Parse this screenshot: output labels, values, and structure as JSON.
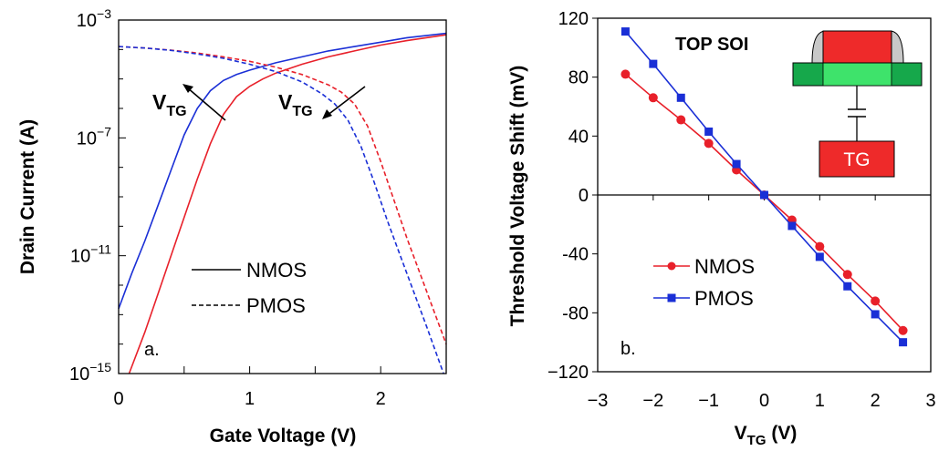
{
  "colors": {
    "nmos": "#e8202a",
    "pmos": "#1a2fd6",
    "inset_red": "#ee2a2a",
    "inset_green_dark": "#16a84b",
    "inset_green_light": "#3ee36b",
    "inset_gray": "#c8c8c8"
  },
  "chart_data": [
    {
      "type": "line",
      "panel_label": "a.",
      "xlabel": "Gate Voltage (V)",
      "ylabel": "Drain Current (A)",
      "xlim": [
        0,
        2.5
      ],
      "ylim_log10": [
        -15,
        -3
      ],
      "y_scale": "log",
      "x_ticks": [
        "0",
        "1",
        "2"
      ],
      "y_ticks": [
        {
          "base": "10",
          "exp": "−3"
        },
        {
          "base": "10",
          "exp": "−7"
        },
        {
          "base": "10",
          "exp": "−11"
        },
        {
          "base": "10",
          "exp": "−15"
        }
      ],
      "legend": {
        "position": "lower-center",
        "entries": [
          {
            "label": "NMOS",
            "style": "solid"
          },
          {
            "label": "PMOS",
            "style": "dashed"
          }
        ]
      },
      "annotations": [
        {
          "main": "V",
          "sub": "TG",
          "arrow": "up-left"
        },
        {
          "main": "V",
          "sub": "TG",
          "arrow": "down-left"
        }
      ],
      "series": [
        {
          "name": "NMOS",
          "device": "NMOS",
          "color": "pmos",
          "style": "solid",
          "x": [
            0,
            0.1,
            0.2,
            0.3,
            0.4,
            0.5,
            0.6,
            0.7,
            0.8,
            0.9,
            1.0,
            1.2,
            1.4,
            1.6,
            1.8,
            2.0,
            2.2,
            2.5
          ],
          "log10_y": [
            -12.8,
            -11.6,
            -10.5,
            -9.3,
            -8.1,
            -6.9,
            -6.0,
            -5.4,
            -5.05,
            -4.85,
            -4.7,
            -4.45,
            -4.25,
            -4.05,
            -3.9,
            -3.75,
            -3.6,
            -3.45
          ]
        },
        {
          "name": "NMOS",
          "device": "NMOS",
          "color": "nmos",
          "style": "solid",
          "x": [
            0.08,
            0.2,
            0.3,
            0.4,
            0.5,
            0.6,
            0.7,
            0.8,
            0.9,
            1.0,
            1.1,
            1.2,
            1.4,
            1.6,
            1.8,
            2.0,
            2.2,
            2.5
          ],
          "log10_y": [
            -15,
            -13.6,
            -12.3,
            -11.0,
            -9.7,
            -8.4,
            -7.2,
            -6.2,
            -5.6,
            -5.25,
            -5.0,
            -4.8,
            -4.5,
            -4.25,
            -4.05,
            -3.85,
            -3.7,
            -3.5
          ]
        },
        {
          "name": "PMOS",
          "device": "PMOS",
          "color": "nmos",
          "style": "dashed",
          "x": [
            0,
            0.2,
            0.4,
            0.6,
            0.8,
            1.0,
            1.2,
            1.4,
            1.6,
            1.7,
            1.8,
            1.9,
            2.0,
            2.1,
            2.2,
            2.3,
            2.4,
            2.5
          ],
          "log10_y": [
            -3.9,
            -3.95,
            -4.02,
            -4.12,
            -4.25,
            -4.4,
            -4.6,
            -4.85,
            -5.2,
            -5.45,
            -5.85,
            -6.6,
            -7.8,
            -9.1,
            -10.4,
            -11.6,
            -12.8,
            -14.0
          ]
        },
        {
          "name": "PMOS",
          "device": "PMOS",
          "color": "pmos",
          "style": "dashed",
          "x": [
            0,
            0.2,
            0.4,
            0.6,
            0.8,
            1.0,
            1.2,
            1.4,
            1.55,
            1.65,
            1.75,
            1.85,
            1.95,
            2.05,
            2.15,
            2.25,
            2.35,
            2.48
          ],
          "log10_y": [
            -3.9,
            -3.95,
            -4.03,
            -4.15,
            -4.3,
            -4.5,
            -4.75,
            -5.1,
            -5.5,
            -5.85,
            -6.4,
            -7.3,
            -8.5,
            -9.8,
            -11.0,
            -12.2,
            -13.4,
            -15.0
          ]
        }
      ]
    },
    {
      "type": "line",
      "panel_label": "b.",
      "xlabel": {
        "main": "V",
        "sub": "TG",
        "rest": " (V)"
      },
      "ylabel": "Threshold Voltage Shift (mV)",
      "xlim": [
        -3,
        3
      ],
      "ylim": [
        -120,
        120
      ],
      "x_ticks": [
        "−3",
        "−2",
        "−1",
        "0",
        "1",
        "2",
        "3"
      ],
      "y_ticks": [
        "120",
        "80",
        "40",
        "0",
        "-40",
        "-80",
        "−120"
      ],
      "legend": {
        "position": "lower-left",
        "entries": [
          {
            "label": "NMOS",
            "marker": "circle"
          },
          {
            "label": "PMOS",
            "marker": "square"
          }
        ]
      },
      "series": [
        {
          "name": "NMOS",
          "color": "nmos",
          "marker": "circle",
          "x": [
            -2.5,
            -2.0,
            -1.5,
            -1.0,
            -0.5,
            0,
            0.5,
            1.0,
            1.5,
            2.0,
            2.5
          ],
          "y": [
            82,
            66,
            51,
            35,
            17,
            0,
            -17,
            -35,
            -54,
            -72,
            -92
          ]
        },
        {
          "name": "PMOS",
          "color": "pmos",
          "marker": "square",
          "x": [
            -2.5,
            -2.0,
            -1.5,
            -1.0,
            -0.5,
            0,
            0.5,
            1.0,
            1.5,
            2.0,
            2.5
          ],
          "y": [
            111,
            89,
            66,
            43,
            21,
            0,
            -21,
            -42,
            -62,
            -81,
            -100
          ]
        }
      ],
      "inset": {
        "title": "TOP SOI",
        "box_label": "TG"
      }
    }
  ]
}
